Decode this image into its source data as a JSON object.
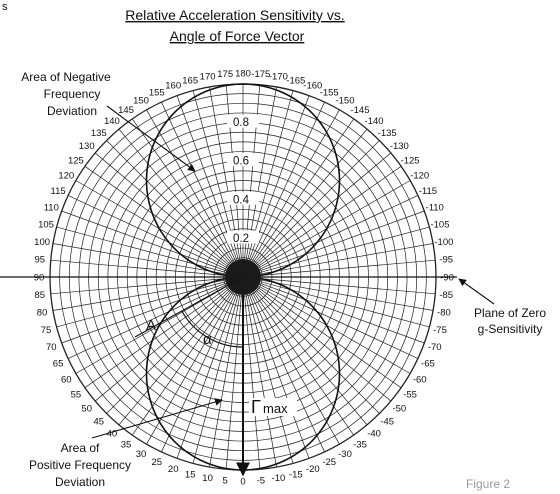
{
  "corner_mark": "s",
  "title": {
    "line1": "Relative Acceleration Sensitivity vs.",
    "line2": "Angle of Force Vector"
  },
  "figure_label": "Figure 2",
  "annotations": {
    "negative_area": [
      "Area of Negative",
      "Frequency",
      "Deviation"
    ],
    "positive_area": [
      "Area of",
      "Positive Frequency",
      "Deviation"
    ],
    "zero_plane": [
      "Plane of Zero",
      "g-Sensitivity"
    ],
    "vector_label": "A",
    "angle_label": "α",
    "gamma_label": "Γ",
    "gamma_sub": "max"
  },
  "chart_data": {
    "type": "polar",
    "title": "Relative Acceleration Sensitivity vs. Angle of Force Vector",
    "radial_ticks": [
      0.2,
      0.4,
      0.6,
      0.8
    ],
    "radial_range": [
      0,
      1
    ],
    "angle_step_deg": 5,
    "angle_zero": "bottom",
    "angle_labels_right": [
      "0",
      "-5",
      "-10",
      "-15",
      "-20",
      "-25",
      "-30",
      "-35",
      "-40",
      "-45",
      "-50",
      "-55",
      "-60",
      "-65",
      "-70",
      "-75",
      "-80",
      "-85",
      "-90",
      "-95",
      "-100",
      "-105",
      "-110",
      "-115",
      "-120",
      "-125",
      "-130",
      "-135",
      "-140",
      "-145",
      "-150",
      "-155",
      "-160",
      "-165",
      "-170",
      "-175",
      "180"
    ],
    "angle_labels_left": [
      "5",
      "10",
      "15",
      "20",
      "25",
      "30",
      "35",
      "40",
      "45",
      "50",
      "55",
      "60",
      "65",
      "70",
      "75",
      "80",
      "85",
      "90",
      "95",
      "100",
      "105",
      "110",
      "115",
      "120",
      "125",
      "130",
      "135",
      "140",
      "145",
      "150",
      "155",
      "160",
      "165",
      "170",
      "175"
    ],
    "series": [
      {
        "formula": "|cos(angle)|",
        "upper_lobe": "negative frequency deviation",
        "lower_lobe": "positive frequency deviation"
      }
    ],
    "grid": true
  }
}
